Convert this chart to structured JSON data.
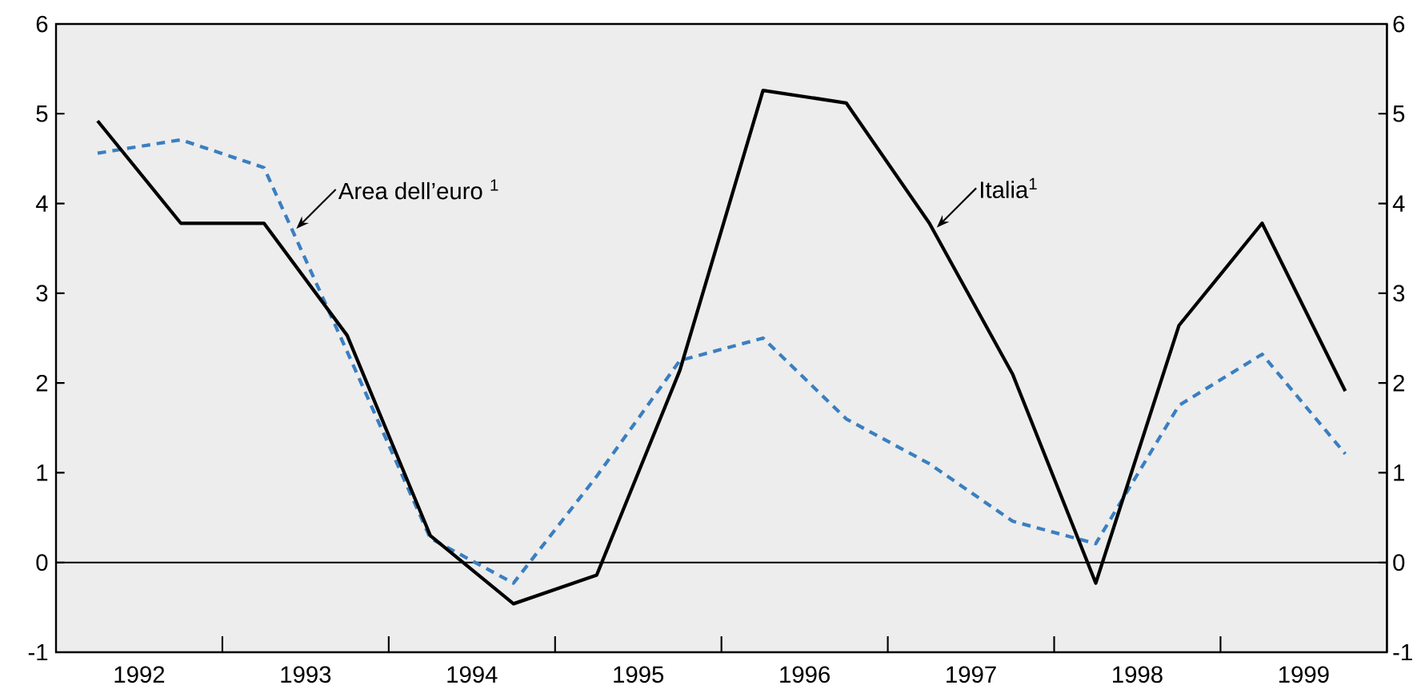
{
  "chart_data": {
    "type": "line",
    "x": [
      1992.25,
      1992.75,
      1993.25,
      1993.75,
      1994.25,
      1994.75,
      1995.25,
      1995.75,
      1996.25,
      1996.75,
      1997.25,
      1997.75,
      1998.25,
      1998.75,
      1999.25,
      1999.75
    ],
    "series": [
      {
        "name": "Area dell’euro $^{1}$",
        "color": "#3a7fc1",
        "line_style": "dashed",
        "values": [
          4.56,
          4.71,
          4.4,
          2.35,
          0.27,
          -0.23,
          0.96,
          2.25,
          2.5,
          1.6,
          1.1,
          0.46,
          0.21,
          1.75,
          2.32,
          1.21
        ]
      },
      {
        "name": "Italia$^{1}$",
        "color": "#000000",
        "line_style": "solid",
        "values": [
          4.92,
          3.78,
          3.78,
          2.53,
          0.3,
          -0.46,
          -0.14,
          2.14,
          5.26,
          5.12,
          3.78,
          2.1,
          -0.23,
          2.64,
          3.78,
          1.91
        ]
      }
    ],
    "xlim": [
      1992,
      2000
    ],
    "xticks": [
      {
        "value": 1992.5,
        "label": "1992"
      },
      {
        "value": 1993.5,
        "label": "1993"
      },
      {
        "value": 1994.5,
        "label": "1994"
      },
      {
        "value": 1995.5,
        "label": "1995"
      },
      {
        "value": 1996.5,
        "label": "1996"
      },
      {
        "value": 1997.5,
        "label": "1997"
      },
      {
        "value": 1998.5,
        "label": "1998"
      },
      {
        "value": 1999.5,
        "label": "1999"
      },
      {
        "value": 1993,
        "label": null
      },
      {
        "value": 1994,
        "label": null
      },
      {
        "value": 1995,
        "label": null
      },
      {
        "value": 1996,
        "label": null
      },
      {
        "value": 1997,
        "label": null
      },
      {
        "value": 1998,
        "label": null
      },
      {
        "value": 1999,
        "label": null
      }
    ],
    "ylim": [
      -1,
      6
    ],
    "yticks": [
      -1,
      0,
      1,
      2,
      3,
      4,
      5,
      6
    ],
    "y2lim": [
      -1,
      6
    ],
    "y2ticks": [
      -1,
      0,
      1,
      2,
      3,
      4,
      5,
      6
    ],
    "ref_lines": [
      {
        "axis": "y",
        "value": 0,
        "color": "#000000"
      }
    ],
    "grid": false,
    "legend": false,
    "marker": "none"
  }
}
